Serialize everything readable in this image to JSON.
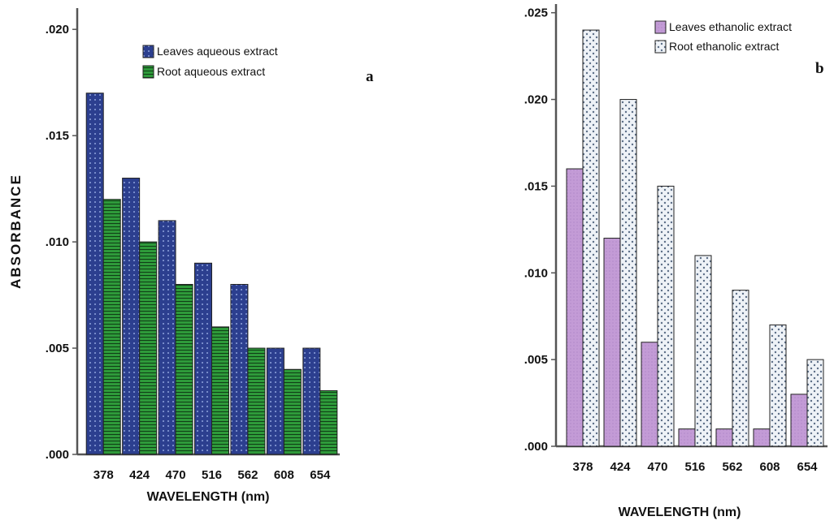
{
  "chart_data": [
    {
      "type": "bar",
      "panel_label": "a",
      "categories": [
        "378",
        "424",
        "470",
        "516",
        "562",
        "608",
        "654"
      ],
      "series": [
        {
          "name": "Leaves aqueous extract",
          "values": [
            0.017,
            0.013,
            0.011,
            0.009,
            0.008,
            0.005,
            0.005
          ],
          "color": "#2c3f8f"
        },
        {
          "name": "Root aqueous extract",
          "values": [
            0.012,
            0.01,
            0.008,
            0.006,
            0.005,
            0.004,
            0.003
          ],
          "color": "#2e9a3a"
        }
      ],
      "yticks": [
        ".000",
        ".005",
        ".010",
        ".015",
        ".020"
      ],
      "ylim": [
        0,
        0.021
      ],
      "xlabel": "WAVELENGTH (nm)",
      "ylabel": "ABSORBANCE",
      "legend": "top-right"
    },
    {
      "type": "bar",
      "panel_label": "b",
      "categories": [
        "378",
        "424",
        "470",
        "516",
        "562",
        "608",
        "654"
      ],
      "series": [
        {
          "name": "Leaves ethanolic extract",
          "values": [
            0.016,
            0.012,
            0.006,
            0.001,
            0.001,
            0.001,
            0.003
          ],
          "color": "#c39bd6"
        },
        {
          "name": "Root ethanolic extract",
          "values": [
            0.024,
            0.02,
            0.015,
            0.011,
            0.009,
            0.007,
            0.005
          ],
          "color": "#dfe8f2"
        }
      ],
      "yticks": [
        ".000",
        ".005",
        ".010",
        ".015",
        ".020",
        ".025"
      ],
      "ylim": [
        0,
        0.0255
      ],
      "xlabel": "WAVELENGTH (nm)",
      "ylabel": "",
      "legend": "top-right"
    }
  ]
}
